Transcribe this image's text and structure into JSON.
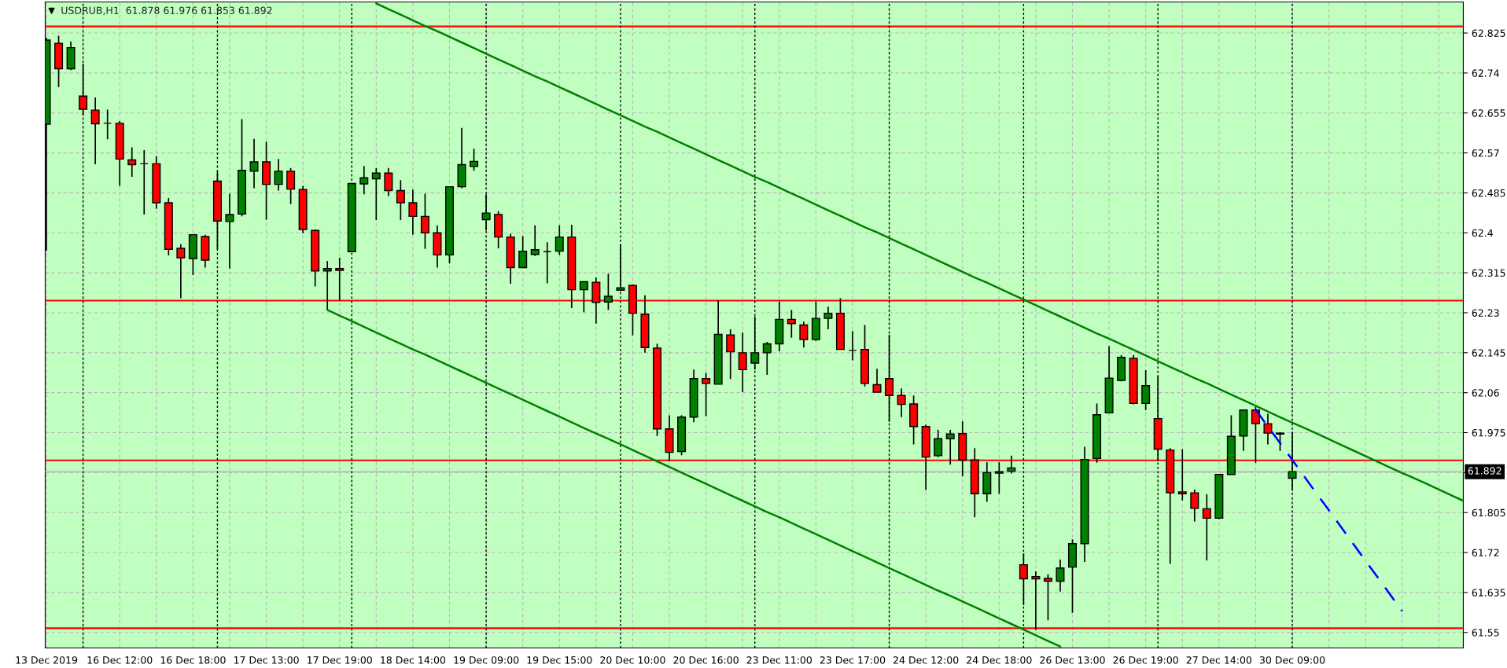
{
  "chart_data": {
    "type": "candlestick",
    "title": "USDRUB,H1  61.878 61.976 61.853 61.892",
    "categories": [
      "13 Dec 2019",
      null,
      null,
      null,
      null,
      null,
      "16 Dec 12:00",
      null,
      null,
      null,
      null,
      null,
      "16 Dec 18:00",
      null,
      null,
      null,
      null,
      null,
      "17 Dec 13:00",
      null,
      null,
      null,
      null,
      null,
      "17 Dec 19:00",
      null,
      null,
      null,
      null,
      null,
      "18 Dec 14:00",
      null,
      null,
      null,
      null,
      null,
      "19 Dec 09:00",
      null,
      null,
      null,
      null,
      null,
      "19 Dec 15:00",
      null,
      null,
      null,
      null,
      null,
      "20 Dec 10:00",
      null,
      null,
      null,
      null,
      null,
      "20 Dec 16:00",
      null,
      null,
      null,
      null,
      null,
      "23 Dec 11:00",
      null,
      null,
      null,
      null,
      null,
      "23 Dec 17:00",
      null,
      null,
      null,
      null,
      null,
      "24 Dec 12:00",
      null,
      null,
      null,
      null,
      null,
      "24 Dec 18:00",
      null,
      null,
      null,
      null,
      null,
      "26 Dec 13:00",
      null,
      null,
      null,
      null,
      null,
      "26 Dec 19:00",
      null,
      null,
      null,
      null,
      null,
      "27 Dec 14:00",
      null,
      null,
      null,
      null,
      null,
      "30 Dec 09:00",
      null,
      null,
      null,
      null,
      null,
      null,
      null,
      null,
      null,
      null,
      null,
      null,
      null,
      null
    ],
    "ohlc": [
      [
        62.631,
        62.815,
        62.362,
        62.81
      ],
      [
        62.803,
        62.819,
        62.71,
        62.749
      ],
      [
        62.749,
        62.807,
        62.746,
        62.794
      ],
      [
        62.691,
        62.76,
        62.65,
        62.663
      ],
      [
        62.661,
        62.688,
        62.546,
        62.632
      ],
      [
        62.633,
        62.662,
        62.599,
        62.633
      ],
      [
        62.633,
        62.638,
        62.5,
        62.557
      ],
      [
        62.555,
        62.582,
        62.519,
        62.545
      ],
      [
        62.547,
        62.576,
        62.439,
        62.547
      ],
      [
        62.547,
        62.563,
        62.451,
        62.464
      ],
      [
        62.464,
        62.474,
        62.352,
        62.365
      ],
      [
        62.367,
        62.376,
        62.261,
        62.347
      ],
      [
        62.345,
        62.396,
        62.31,
        62.396
      ],
      [
        62.392,
        62.396,
        62.326,
        62.342
      ],
      [
        62.51,
        62.53,
        62.365,
        62.425
      ],
      [
        62.424,
        62.483,
        62.324,
        62.439
      ],
      [
        62.44,
        62.642,
        62.435,
        62.533
      ],
      [
        62.531,
        62.6,
        62.495,
        62.551
      ],
      [
        62.551,
        62.594,
        62.428,
        62.503
      ],
      [
        62.503,
        62.557,
        62.49,
        62.531
      ],
      [
        62.531,
        62.538,
        62.461,
        62.493
      ],
      [
        62.492,
        62.5,
        62.399,
        62.407
      ],
      [
        62.405,
        62.407,
        62.286,
        62.319
      ],
      [
        62.319,
        62.34,
        62.236,
        62.324
      ],
      [
        62.324,
        62.347,
        62.256,
        62.32
      ],
      [
        62.36,
        62.505,
        62.36,
        62.505
      ],
      [
        62.504,
        62.542,
        62.482,
        62.517
      ],
      [
        62.515,
        62.538,
        62.427,
        62.527
      ],
      [
        62.527,
        62.538,
        62.478,
        62.49
      ],
      [
        62.49,
        62.512,
        62.427,
        62.464
      ],
      [
        62.464,
        62.492,
        62.396,
        62.435
      ],
      [
        62.435,
        62.483,
        62.366,
        62.4
      ],
      [
        62.4,
        62.416,
        62.326,
        62.353
      ],
      [
        62.353,
        62.498,
        62.335,
        62.498
      ],
      [
        62.498,
        62.623,
        62.495,
        62.545
      ],
      [
        62.541,
        62.579,
        62.532,
        62.552
      ],
      [
        62.428,
        62.482,
        62.405,
        62.442
      ],
      [
        62.439,
        62.446,
        62.367,
        62.391
      ],
      [
        62.391,
        62.398,
        62.292,
        62.326
      ],
      [
        62.326,
        62.393,
        62.326,
        62.361
      ],
      [
        62.354,
        62.416,
        62.351,
        62.364
      ],
      [
        62.36,
        62.38,
        62.293,
        62.36
      ],
      [
        62.361,
        62.416,
        62.353,
        62.391
      ],
      [
        62.391,
        62.417,
        62.24,
        62.279
      ],
      [
        62.279,
        62.296,
        62.231,
        62.296
      ],
      [
        62.295,
        62.305,
        62.207,
        62.252
      ],
      [
        62.253,
        62.313,
        62.236,
        62.265
      ],
      [
        62.278,
        62.376,
        62.276,
        62.283
      ],
      [
        62.288,
        62.29,
        62.182,
        62.229
      ],
      [
        62.227,
        62.267,
        62.145,
        62.156
      ],
      [
        62.155,
        62.164,
        61.968,
        61.983
      ],
      [
        61.983,
        62.012,
        61.915,
        61.933
      ],
      [
        61.935,
        62.012,
        61.927,
        62.008
      ],
      [
        62.008,
        62.109,
        61.997,
        62.09
      ],
      [
        62.09,
        62.102,
        62.01,
        62.08
      ],
      [
        62.078,
        62.256,
        62.078,
        62.184
      ],
      [
        62.183,
        62.195,
        62.089,
        62.147
      ],
      [
        62.145,
        62.188,
        62.061,
        62.109
      ],
      [
        62.123,
        62.222,
        62.109,
        62.145
      ],
      [
        62.145,
        62.168,
        62.098,
        62.164
      ],
      [
        62.164,
        62.254,
        62.148,
        62.216
      ],
      [
        62.216,
        62.236,
        62.177,
        62.207
      ],
      [
        62.204,
        62.211,
        62.156,
        62.173
      ],
      [
        62.173,
        62.254,
        62.17,
        62.218
      ],
      [
        62.218,
        62.243,
        62.195,
        62.229
      ],
      [
        62.229,
        62.261,
        62.152,
        62.152
      ],
      [
        62.15,
        62.191,
        62.129,
        62.15
      ],
      [
        62.152,
        62.204,
        62.073,
        62.08
      ],
      [
        62.077,
        62.111,
        62.061,
        62.061
      ],
      [
        62.09,
        62.183,
        61.998,
        62.054
      ],
      [
        62.054,
        62.069,
        62.008,
        62.035
      ],
      [
        62.036,
        62.054,
        61.95,
        61.988
      ],
      [
        61.988,
        61.992,
        61.853,
        61.923
      ],
      [
        61.926,
        61.981,
        61.923,
        61.962
      ],
      [
        61.962,
        61.981,
        61.907,
        61.972
      ],
      [
        61.973,
        61.999,
        61.882,
        61.917
      ],
      [
        61.917,
        61.942,
        61.795,
        61.845
      ],
      [
        61.845,
        61.912,
        61.828,
        61.89
      ],
      [
        61.889,
        61.912,
        61.845,
        61.892
      ],
      [
        61.893,
        61.926,
        61.888,
        61.9
      ],
      [
        61.694,
        61.718,
        61.608,
        61.664
      ],
      [
        61.669,
        61.68,
        61.555,
        61.664
      ],
      [
        61.665,
        61.674,
        61.576,
        61.659
      ],
      [
        61.659,
        61.705,
        61.637,
        61.687
      ],
      [
        61.689,
        61.748,
        61.592,
        61.739
      ],
      [
        61.739,
        61.945,
        61.7,
        61.918
      ],
      [
        61.92,
        62.037,
        61.911,
        62.013
      ],
      [
        62.017,
        62.159,
        62.017,
        62.091
      ],
      [
        62.086,
        62.14,
        62.084,
        62.135
      ],
      [
        62.133,
        62.14,
        62.035,
        62.037
      ],
      [
        62.037,
        62.108,
        62.023,
        62.075
      ],
      [
        62.005,
        62.095,
        61.915,
        61.94
      ],
      [
        61.938,
        61.942,
        61.696,
        61.847
      ],
      [
        61.849,
        61.94,
        61.831,
        61.845
      ],
      [
        61.847,
        61.854,
        61.786,
        61.814
      ],
      [
        61.813,
        61.844,
        61.703,
        61.793
      ],
      [
        61.793,
        61.886,
        61.791,
        61.886
      ],
      [
        61.886,
        62.012,
        61.886,
        61.967
      ],
      [
        61.968,
        62.023,
        61.936,
        62.023
      ],
      [
        62.023,
        62.03,
        61.911,
        61.994
      ],
      [
        61.994,
        62.015,
        61.95,
        61.974
      ],
      [
        61.974,
        61.976,
        61.936,
        61.972
      ],
      [
        61.878,
        61.976,
        61.853,
        61.892
      ],
      null,
      null,
      null,
      null,
      null,
      null,
      null,
      null,
      null,
      null,
      null,
      null,
      null,
      null
    ],
    "series": [
      {
        "type": "line",
        "color": "#008000",
        "values": [
          null,
          null,
          null,
          null,
          null,
          null,
          null,
          null,
          null,
          null,
          null,
          null,
          null,
          null,
          null,
          null,
          null,
          null,
          null,
          null,
          null,
          null,
          null,
          null,
          null,
          null,
          null,
          62.888,
          62.876,
          62.864,
          62.852,
          62.84,
          62.829,
          62.817,
          62.805,
          62.793,
          62.781,
          62.769,
          62.757,
          62.745,
          62.733,
          62.722,
          62.71,
          62.698,
          62.686,
          62.674,
          62.662,
          62.65,
          62.638,
          62.626,
          62.615,
          62.603,
          62.591,
          62.579,
          62.567,
          62.555,
          62.543,
          62.531,
          62.519,
          62.508,
          62.496,
          62.484,
          62.472,
          62.46,
          62.448,
          62.436,
          62.424,
          62.412,
          62.401,
          62.389,
          62.377,
          62.365,
          62.353,
          62.341,
          62.329,
          62.317,
          62.305,
          62.294,
          62.282,
          62.27,
          62.258,
          62.246,
          62.234,
          62.222,
          62.21,
          62.198,
          62.186,
          62.175,
          62.163,
          62.151,
          62.139,
          62.127,
          62.115,
          62.103,
          62.091,
          62.08,
          62.068,
          62.056,
          62.044,
          62.032,
          62.02,
          62.008,
          61.996,
          61.985,
          61.973,
          61.961,
          61.949,
          61.937,
          61.925,
          61.913,
          61.901,
          61.889,
          61.878,
          61.866,
          61.854,
          61.842,
          61.83
        ]
      },
      {
        "type": "line",
        "color": "#008000",
        "values": [
          null,
          null,
          null,
          null,
          null,
          null,
          null,
          null,
          null,
          null,
          null,
          null,
          null,
          null,
          null,
          null,
          null,
          null,
          null,
          null,
          null,
          null,
          null,
          62.236,
          62.224,
          62.212,
          62.2,
          62.188,
          62.176,
          62.164,
          62.152,
          62.141,
          62.129,
          62.117,
          62.105,
          62.093,
          62.081,
          62.069,
          62.057,
          62.045,
          62.033,
          62.021,
          62.009,
          61.997,
          61.985,
          61.973,
          61.962,
          61.95,
          61.938,
          61.926,
          61.914,
          61.902,
          61.89,
          61.878,
          61.866,
          61.854,
          61.842,
          61.83,
          61.818,
          61.806,
          61.795,
          61.783,
          61.771,
          61.759,
          61.747,
          61.735,
          61.723,
          61.711,
          61.699,
          61.687,
          61.675,
          61.663,
          61.651,
          61.639,
          61.628,
          61.616,
          61.604,
          61.592,
          61.58,
          61.568,
          61.556,
          61.544,
          61.532,
          61.52,
          null,
          null,
          null,
          null,
          null,
          null,
          null,
          null,
          null,
          null,
          null,
          null,
          null,
          null,
          null,
          null,
          null,
          null,
          null,
          null,
          null,
          null,
          null,
          null,
          null,
          null,
          null,
          null,
          null,
          null,
          null,
          null,
          null
        ]
      },
      {
        "type": "line",
        "color": "#0000ff",
        "line_style": "dashed",
        "values": [
          null,
          null,
          null,
          null,
          null,
          null,
          null,
          null,
          null,
          null,
          null,
          null,
          null,
          null,
          null,
          null,
          null,
          null,
          null,
          null,
          null,
          null,
          null,
          null,
          null,
          null,
          null,
          null,
          null,
          null,
          null,
          null,
          null,
          null,
          null,
          null,
          null,
          null,
          null,
          null,
          null,
          null,
          null,
          null,
          null,
          null,
          null,
          null,
          null,
          null,
          null,
          null,
          null,
          null,
          null,
          null,
          null,
          null,
          null,
          null,
          null,
          null,
          null,
          null,
          null,
          null,
          null,
          null,
          null,
          null,
          null,
          null,
          null,
          null,
          null,
          null,
          null,
          null,
          null,
          null,
          null,
          null,
          null,
          null,
          null,
          null,
          null,
          null,
          null,
          null,
          null,
          null,
          null,
          null,
          null,
          null,
          null,
          null,
          null,
          62.024,
          61.988,
          61.953,
          61.917,
          61.881,
          61.845,
          61.81,
          61.774,
          61.738,
          61.702,
          61.667,
          61.631,
          61.595,
          null,
          null,
          null,
          null,
          null
        ]
      }
    ],
    "ylim": [
      61.517,
      62.891
    ],
    "yticks": [
      62.825,
      62.74,
      62.655,
      62.57,
      62.485,
      62.4,
      62.315,
      62.23,
      62.145,
      62.06,
      61.975,
      {
        "value": 61.89,
        "label": null
      },
      61.805,
      61.72,
      61.635,
      61.55
    ],
    "ref_lines": [
      {
        "axis": "y",
        "value": 62.839,
        "color": "#ff0000"
      },
      {
        "axis": "y",
        "value": 62.256,
        "color": "#ff0000"
      },
      {
        "axis": "y",
        "value": 61.916,
        "color": "#ff0000"
      },
      {
        "axis": "y",
        "value": 61.559,
        "color": "#ff0000"
      },
      {
        "axis": "y",
        "value": 61.892,
        "color": "#c0c0c0",
        "label": "61.892"
      }
    ],
    "grid": true
  }
}
